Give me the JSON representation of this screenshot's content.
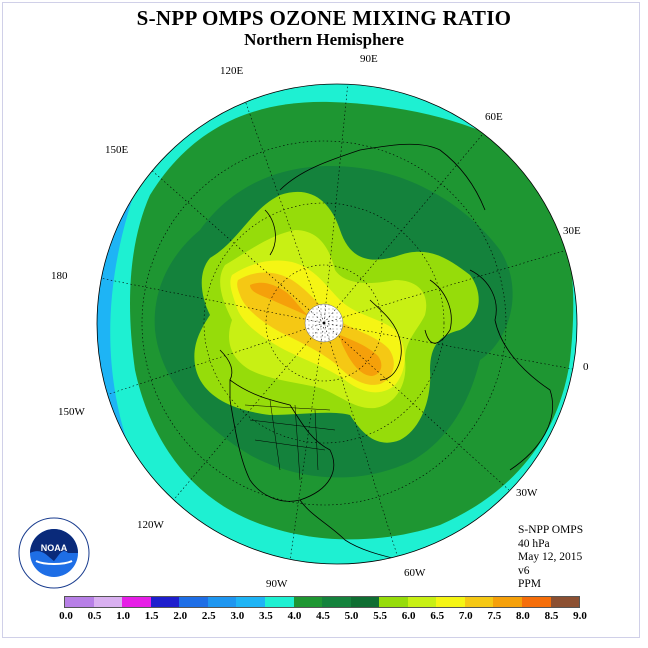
{
  "title": "S-NPP OMPS OZONE MIXING RATIO",
  "subtitle": "Northern Hemisphere",
  "longitude_labels": {
    "lon_90e": "90E",
    "lon_120e": "120E",
    "lon_60e": "60E",
    "lon_150e": "150E",
    "lon_30e": "30E",
    "lon_180": "180",
    "lon_0": "0",
    "lon_150w": "150W",
    "lon_30w": "30W",
    "lon_120w": "120W",
    "lon_60w": "60W",
    "lon_90w": "90W"
  },
  "info": {
    "instrument": "S-NPP OMPS",
    "level": "40 hPa",
    "date": "May 12, 2015",
    "version": "v6",
    "units": "PPM"
  },
  "logo_text": "NOAA",
  "colorbar": {
    "ticks": [
      "0.0",
      "0.5",
      "1.0",
      "1.5",
      "2.0",
      "2.5",
      "3.0",
      "3.5",
      "4.0",
      "4.5",
      "5.0",
      "5.5",
      "6.0",
      "6.5",
      "7.0",
      "7.5",
      "8.0",
      "8.5",
      "9.0"
    ],
    "colors": [
      "#b77fe6",
      "#d9b0f0",
      "#e61ee6",
      "#1e1ecd",
      "#1e6ee6",
      "#1e96f0",
      "#1eb4f5",
      "#1ef0d2",
      "#1e9632",
      "#14823c",
      "#0f6e32",
      "#96dc0a",
      "#c8f014",
      "#f5f514",
      "#f5c814",
      "#f5a00a",
      "#f56e0a",
      "#e60a0a",
      "#8c5032"
    ]
  },
  "fields": {
    "outer_ring": "#1ef0d2",
    "low_band": "#1eb4f5",
    "mid": "#1e9632",
    "dark": "#14823c",
    "high1": "#96dc0a",
    "high2": "#c8f014",
    "high3": "#f5f514",
    "high4": "#f5c814",
    "high5": "#f5a00a",
    "pole_missing": "#ffffff"
  }
}
